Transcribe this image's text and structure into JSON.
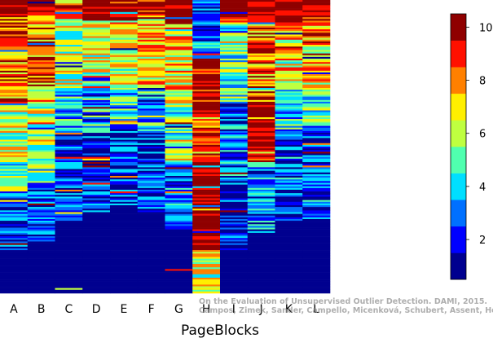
{
  "chart_data": {
    "type": "heatmap",
    "title": "",
    "xlabel": "PageBlocks",
    "ylabel": "",
    "columns": [
      "A",
      "B",
      "C",
      "D",
      "E",
      "F",
      "G",
      "H",
      "I",
      "J",
      "K",
      "L"
    ],
    "colorbar": {
      "min": 0.5,
      "max": 10.5,
      "ticks": [
        2,
        4,
        6,
        8,
        10
      ],
      "colormap": "jet"
    },
    "colormap_colors": [
      "#00008f",
      "#0000ff",
      "#0070ff",
      "#00dfff",
      "#50ffaf",
      "#bfff40",
      "#ffef00",
      "#ff8000",
      "#ff1000",
      "#8f0000"
    ],
    "row_count": 170,
    "columns_profile": [
      {
        "name": "A",
        "segments": [
          [
            0,
            0.05,
            10,
            0.4
          ],
          [
            0.05,
            0.35,
            8.5,
            0.6
          ],
          [
            0.35,
            0.55,
            6,
            0.6
          ],
          [
            0.55,
            0.65,
            5,
            0.5
          ],
          [
            0.65,
            0.85,
            2.5,
            0.5
          ],
          [
            0.85,
            1.0,
            1,
            0
          ]
        ]
      },
      {
        "name": "B",
        "segments": [
          [
            0,
            0.05,
            10,
            0.4
          ],
          [
            0.05,
            0.3,
            8.5,
            0.6
          ],
          [
            0.3,
            0.5,
            6.5,
            0.6
          ],
          [
            0.5,
            0.62,
            5,
            0.5
          ],
          [
            0.62,
            0.82,
            2.5,
            0.5
          ],
          [
            0.82,
            1.0,
            1,
            0
          ]
        ]
      },
      {
        "name": "C",
        "segments": [
          [
            0,
            0.06,
            9,
            0.4
          ],
          [
            0.06,
            0.3,
            6,
            0.6
          ],
          [
            0.3,
            0.45,
            4,
            0.6
          ],
          [
            0.45,
            0.75,
            2.5,
            0.5
          ],
          [
            0.75,
            1.0,
            1,
            0.05
          ]
        ]
      },
      {
        "name": "D",
        "segments": [
          [
            0,
            0.07,
            10,
            0.4
          ],
          [
            0.07,
            0.3,
            6.5,
            0.6
          ],
          [
            0.3,
            0.45,
            3.5,
            0.6
          ],
          [
            0.45,
            0.72,
            2,
            0.5
          ],
          [
            0.72,
            1.0,
            1,
            0.02
          ]
        ]
      },
      {
        "name": "E",
        "segments": [
          [
            0,
            0.07,
            10,
            0.4
          ],
          [
            0.07,
            0.3,
            6.5,
            0.6
          ],
          [
            0.3,
            0.42,
            4.5,
            0.6
          ],
          [
            0.42,
            0.7,
            2.5,
            0.5
          ],
          [
            0.7,
            1.0,
            1,
            0.02
          ]
        ]
      },
      {
        "name": "F",
        "segments": [
          [
            0,
            0.06,
            9.5,
            0.4
          ],
          [
            0.06,
            0.3,
            7,
            0.6
          ],
          [
            0.3,
            0.45,
            3.5,
            0.6
          ],
          [
            0.45,
            0.72,
            2.5,
            0.5
          ],
          [
            0.72,
            1.0,
            1,
            0.02
          ]
        ]
      },
      {
        "name": "G",
        "segments": [
          [
            0,
            0.08,
            10,
            0.4
          ],
          [
            0.08,
            0.35,
            7,
            0.6
          ],
          [
            0.35,
            0.55,
            5.5,
            0.6
          ],
          [
            0.55,
            0.78,
            3,
            0.5
          ],
          [
            0.78,
            1.0,
            1,
            0.08
          ]
        ]
      },
      {
        "name": "H",
        "segments": [
          [
            0,
            0.2,
            3,
            0.5
          ],
          [
            0.2,
            0.4,
            10,
            0.5
          ],
          [
            0.4,
            0.55,
            8,
            0.5
          ],
          [
            0.55,
            0.75,
            10,
            0.4
          ],
          [
            0.75,
            0.85,
            10,
            0.2
          ],
          [
            0.85,
            1.0,
            6,
            0.6
          ]
        ]
      },
      {
        "name": "I",
        "segments": [
          [
            0,
            0.08,
            10,
            0.4
          ],
          [
            0.08,
            0.35,
            5,
            0.6
          ],
          [
            0.35,
            0.6,
            3,
            0.6
          ],
          [
            0.6,
            0.85,
            2,
            0.5
          ],
          [
            0.85,
            1.0,
            1,
            0.05
          ]
        ]
      },
      {
        "name": "J",
        "segments": [
          [
            0,
            0.08,
            10,
            0.4
          ],
          [
            0.08,
            0.35,
            8,
            0.6
          ],
          [
            0.35,
            0.55,
            10,
            0.4
          ],
          [
            0.55,
            0.78,
            3,
            0.6
          ],
          [
            0.78,
            1.0,
            1,
            0.02
          ]
        ]
      },
      {
        "name": "K",
        "segments": [
          [
            0,
            0.08,
            10,
            0.4
          ],
          [
            0.08,
            0.3,
            7,
            0.6
          ],
          [
            0.3,
            0.45,
            4,
            0.6
          ],
          [
            0.45,
            0.75,
            2.5,
            0.5
          ],
          [
            0.75,
            1.0,
            1,
            0.02
          ]
        ]
      },
      {
        "name": "L",
        "segments": [
          [
            0,
            0.08,
            10,
            0.4
          ],
          [
            0.08,
            0.3,
            7.5,
            0.6
          ],
          [
            0.3,
            0.45,
            4.5,
            0.6
          ],
          [
            0.45,
            0.75,
            2.5,
            0.5
          ],
          [
            0.75,
            1.0,
            1,
            0.05
          ]
        ]
      }
    ]
  },
  "watermark": {
    "line1": "On the Evaluation of Unsupervised Outlier Detection. DAMI, 2015.",
    "line2": "Campos, Zimek, Sander, Campello, Micenková, Schubert, Assent, Houle"
  }
}
